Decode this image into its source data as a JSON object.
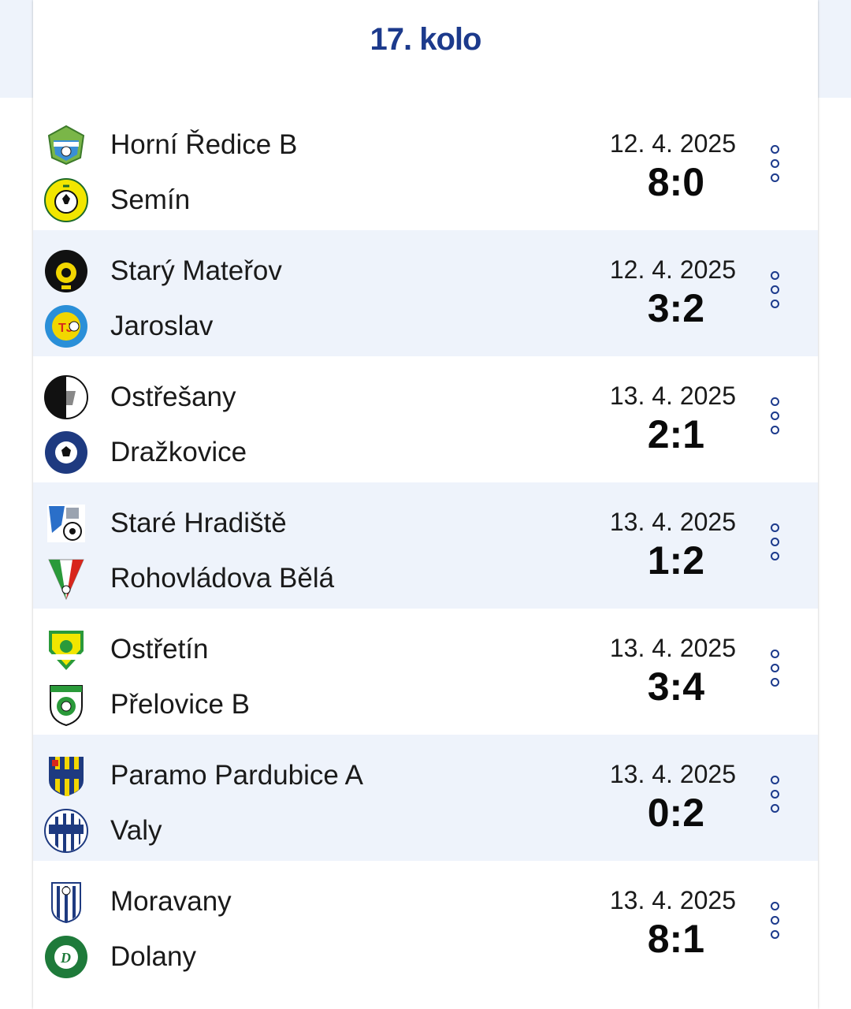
{
  "round": {
    "title": "17. kolo"
  },
  "colors": {
    "accent": "#1c3a8c",
    "row_alt": "#eef3fb"
  },
  "matches": [
    {
      "home": "Horní Ředice B",
      "away": "Semín",
      "date": "12. 4. 2025",
      "score": "8:0",
      "home_logo": "horni-redice-crest",
      "away_logo": "sokol-semin-crest"
    },
    {
      "home": "Starý Mateřov",
      "away": "Jaroslav",
      "date": "12. 4. 2025",
      "score": "3:2",
      "home_logo": "stary-materov-crest",
      "away_logo": "jaroslav-crest"
    },
    {
      "home": "Ostřešany",
      "away": "Dražkovice",
      "date": "13. 4. 2025",
      "score": "2:1",
      "home_logo": "afk-ostresany-crest",
      "away_logo": "sk-drazkovice-crest"
    },
    {
      "home": "Staré Hradiště",
      "away": "Rohovládova Bělá",
      "date": "13. 4. 2025",
      "score": "1:2",
      "home_logo": "stare-hradiste-crest",
      "away_logo": "sokol-rohovladova-bela-crest"
    },
    {
      "home": "Ostřetín",
      "away": "Přelovice B",
      "date": "13. 4. 2025",
      "score": "3:4",
      "home_logo": "sokol-ostretin-crest",
      "away_logo": "tj-prelovice-crest"
    },
    {
      "home": "Paramo Pardubice A",
      "away": "Valy",
      "date": "13. 4. 2025",
      "score": "0:2",
      "home_logo": "paramo-pardubice-crest",
      "away_logo": "tj-valy-crest"
    },
    {
      "home": "Moravany",
      "away": "Dolany",
      "date": "13. 4. 2025",
      "score": "8:1",
      "home_logo": "moravany-crest",
      "away_logo": "sk-dolany-crest"
    }
  ],
  "row_action": {
    "icon": "more-vertical-icon"
  }
}
